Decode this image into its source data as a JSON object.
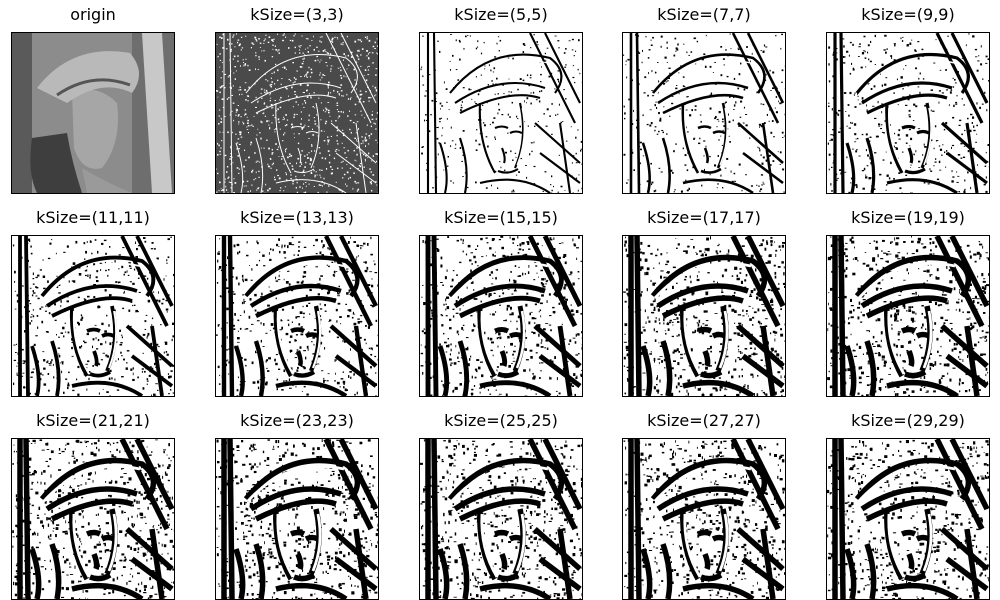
{
  "figure": {
    "panels": [
      {
        "title": "origin",
        "kind": "photo"
      },
      {
        "title": "kSize=(3,3)",
        "kind": "edges",
        "ksize": 3
      },
      {
        "title": "kSize=(5,5)",
        "kind": "edges",
        "ksize": 5
      },
      {
        "title": "kSize=(7,7)",
        "kind": "edges",
        "ksize": 7
      },
      {
        "title": "kSize=(9,9)",
        "kind": "edges",
        "ksize": 9
      },
      {
        "title": "kSize=(11,11)",
        "kind": "edges",
        "ksize": 11
      },
      {
        "title": "kSize=(13,13)",
        "kind": "edges",
        "ksize": 13
      },
      {
        "title": "kSize=(15,15)",
        "kind": "edges",
        "ksize": 15
      },
      {
        "title": "kSize=(17,17)",
        "kind": "edges",
        "ksize": 17
      },
      {
        "title": "kSize=(19,19)",
        "kind": "edges",
        "ksize": 19
      },
      {
        "title": "kSize=(21,21)",
        "kind": "edges",
        "ksize": 21
      },
      {
        "title": "kSize=(23,23)",
        "kind": "edges",
        "ksize": 23
      },
      {
        "title": "kSize=(25,25)",
        "kind": "edges",
        "ksize": 25
      },
      {
        "title": "kSize=(27,27)",
        "kind": "edges",
        "ksize": 27
      },
      {
        "title": "kSize=(29,29)",
        "kind": "edges",
        "ksize": 29
      }
    ]
  }
}
